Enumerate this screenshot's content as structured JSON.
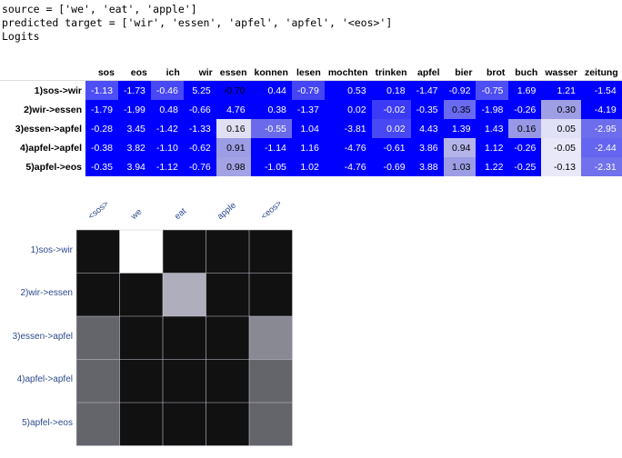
{
  "console": {
    "source_line": "source = ['we', 'eat', 'apple']",
    "predicted_line": "predicted target = ['wir', 'essen', 'apfel', 'apfel', '<eos>']",
    "logits_label": "Logits"
  },
  "logits_table": {
    "columns": [
      "sos",
      "eos",
      "ich",
      "wir",
      "essen",
      "konnen",
      "lesen",
      "mochten",
      "trinken",
      "apfel",
      "bier",
      "brot",
      "buch",
      "wasser",
      "zeitung"
    ],
    "rows": [
      {
        "label": "1)sos->wir",
        "values": [
          "-1.13",
          "-1.73",
          "-0.46",
          "5.25",
          "-0.70",
          "0.44",
          "-0.79",
          "0.53",
          "0.18",
          "-1.47",
          "-0.92",
          "-0.75",
          "1.69",
          "1.21",
          "-1.54"
        ]
      },
      {
        "label": "2)wir->essen",
        "values": [
          "-1.79",
          "-1.99",
          "0.48",
          "-0.66",
          "4.76",
          "0.38",
          "-1.37",
          "0.02",
          "-0.02",
          "-0.35",
          "0.35",
          "-1.98",
          "-0.26",
          "0.30",
          "-4.19"
        ]
      },
      {
        "label": "3)essen->apfel",
        "values": [
          "-0.28",
          "3.45",
          "-1.42",
          "-1.33",
          "0.16",
          "-0.55",
          "1.04",
          "-3.81",
          "0.02",
          "4.43",
          "1.39",
          "1.43",
          "0.16",
          "0.05",
          "-2.95"
        ]
      },
      {
        "label": "4)apfel->apfel",
        "values": [
          "-0.38",
          "3.82",
          "-1.10",
          "-0.62",
          "0.91",
          "-1.14",
          "1.16",
          "-4.76",
          "-0.61",
          "3.86",
          "0.94",
          "1.12",
          "-0.26",
          "-0.05",
          "-2.44"
        ]
      },
      {
        "label": "5)apfel->eos",
        "values": [
          "-0.35",
          "3.94",
          "-1.12",
          "-0.76",
          "0.98",
          "-1.05",
          "1.02",
          "-4.76",
          "-0.69",
          "3.88",
          "1.03",
          "1.22",
          "-0.25",
          "-0.13",
          "-2.31"
        ]
      }
    ],
    "cell_colors": [
      [
        "#4e4ef6",
        "#0000ff",
        "#4848f4",
        "#0000ff",
        "#0000ff",
        "#0000ff",
        "#4545f3",
        "#0000ff",
        "#0000ff",
        "#0000ff",
        "#0000ff",
        "#4e4ef5",
        "#0000ff",
        "#0000ff",
        "#0000ff"
      ],
      [
        "#0000ff",
        "#0000ff",
        "#0000ff",
        "#0000ff",
        "#0000ff",
        "#0000ff",
        "#0000ff",
        "#0000ff",
        "#3b3bf7",
        "#0000ff",
        "#6a6af0",
        "#0000ff",
        "#0000ff",
        "#9e9ee4",
        "#0000ff"
      ],
      [
        "#0000ff",
        "#0000ff",
        "#0000ff",
        "#0000ff",
        "#e0e0f2",
        "#6a6aea",
        "#0000ff",
        "#0000ff",
        "#4848f4",
        "#0000ff",
        "#0000ff",
        "#0000ff",
        "#9797e6",
        "#e0e0f6",
        "#6d6ded"
      ],
      [
        "#0000ff",
        "#0000ff",
        "#0000ff",
        "#0000ff",
        "#9d9de6",
        "#0000ff",
        "#0000ff",
        "#0000ff",
        "#0000ff",
        "#0000ff",
        "#b4b4eb",
        "#0000ff",
        "#0000ff",
        "#e8e8f8",
        "#6565ef"
      ],
      [
        "#0000ff",
        "#0000ff",
        "#0000ff",
        "#0000ff",
        "#a2a2e4",
        "#0000ff",
        "#0000ff",
        "#0000ff",
        "#0000ff",
        "#0000ff",
        "#9c9ce5",
        "#0000ff",
        "#0000ff",
        "#e8e8f8",
        "#7171ee"
      ]
    ],
    "light_text_cells": [
      [
        0,
        4
      ],
      [
        1,
        10
      ],
      [
        1,
        13
      ],
      [
        2,
        4
      ],
      [
        2,
        12
      ],
      [
        2,
        13
      ],
      [
        3,
        4
      ],
      [
        3,
        10
      ],
      [
        3,
        13
      ],
      [
        4,
        4
      ],
      [
        4,
        10
      ],
      [
        4,
        13
      ]
    ]
  },
  "heatmap": {
    "x_labels": [
      "<sos>",
      "we",
      "eat",
      "apple",
      "<eos>"
    ],
    "y_labels": [
      "1)sos->wir",
      "2)wir->essen",
      "3)essen->apfel",
      "4)apfel->apfel",
      "5)apfel->eos"
    ],
    "values": [
      [
        0.05,
        1.0,
        0.05,
        0.05,
        0.05
      ],
      [
        0.05,
        0.05,
        0.72,
        0.05,
        0.05
      ],
      [
        0.38,
        0.05,
        0.05,
        0.05,
        0.55
      ],
      [
        0.38,
        0.05,
        0.05,
        0.05,
        0.38
      ],
      [
        0.38,
        0.05,
        0.05,
        0.05,
        0.38
      ]
    ],
    "colors": {
      "background": "#111111",
      "grid": "#c8c8d8",
      "label": "#2f4a8c"
    }
  }
}
